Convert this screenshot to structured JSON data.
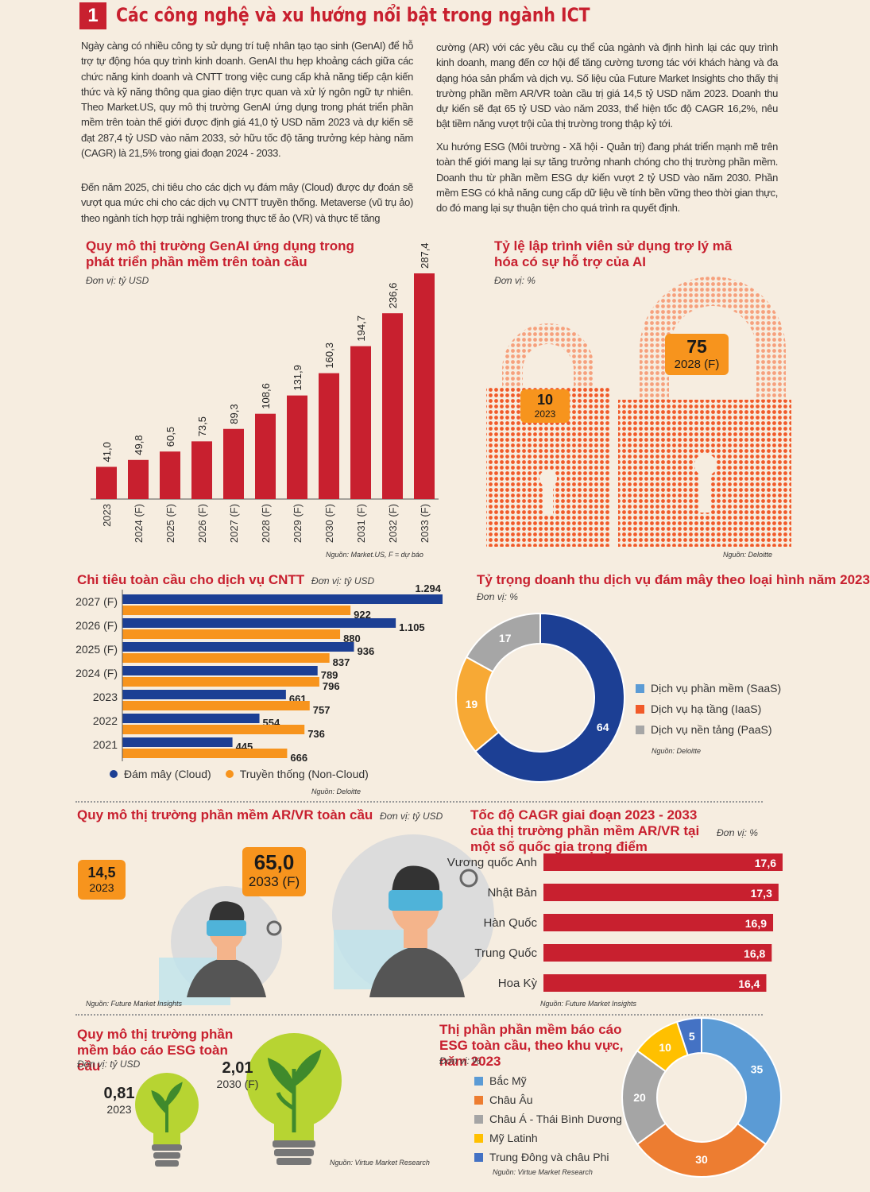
{
  "header": {
    "number": "1",
    "title": "Các công nghệ và xu hướng nổi bật trong ngành ICT"
  },
  "intro": {
    "left_p1": "Ngày càng có nhiều công ty sử dụng trí tuệ nhân tạo tạo sinh (GenAI) để hỗ trợ tự động hóa quy trình kinh doanh. GenAI thu hẹp khoảng cách giữa các chức năng kinh doanh và CNTT trong việc cung cấp khả năng tiếp cận kiến thức và kỹ năng thông qua giao diện trực quan và xử lý ngôn ngữ tự nhiên. Theo Market.US, quy mô thị trường GenAI ứng dụng trong phát triển phần mềm trên toàn thế giới được định giá 41,0 tỷ USD năm 2023 và dự kiến sẽ đạt 287,4 tỷ USD vào năm 2033, sở hữu tốc độ tăng trưởng kép hàng năm (CAGR) là 21,5% trong giai đoạn 2024 - 2033.",
    "left_p2": "Đến năm 2025, chi tiêu cho các dịch vụ đám mây (Cloud) được dự đoán sẽ vượt qua mức chi cho các dịch vụ CNTT truyền thống.  Metaverse (vũ trụ ảo) theo ngành tích hợp trải nghiệm trong thực tế ảo (VR) và thực tế tăng",
    "right_p1": "cường (AR) với các yêu cầu cụ thể của ngành và định hình lại các quy trình kinh doanh, mang đến cơ hội để tăng cường tương tác với khách hàng và đa dạng hóa sản phẩm và dịch vụ. Số liệu của Future Market Insights cho thấy thị trường phần mềm AR/VR toàn cầu trị giá 14,5 tỷ USD năm 2023. Doanh thu dự kiến sẽ đạt 65 tỷ USD vào năm 2033, thể hiện tốc độ CAGR 16,2%, nêu bật tiềm năng vượt trội của thị trường trong thập kỷ tới.",
    "right_p2": "Xu hướng ESG (Môi trường - Xã hội - Quản trị)  đang phát triển mạnh mẽ trên toàn thế giới mang lại sự tăng trưởng nhanh chóng cho thị trường phần mềm. Doanh thu từ phần mềm ESG dự kiến vượt 2 tỷ USD vào năm 2030. Phần mềm ESG có khả năng cung cấp dữ liệu về tính bền vững theo thời gian thực, do đó mang lại sự thuận tiện cho quá trình ra quyết định."
  },
  "colors": {
    "red": "#c8202f",
    "orange": "#f7941d",
    "navy": "#1c3f94",
    "grey": "#a6a6a6",
    "lightblue": "#5b9bd5",
    "lockorange": "#f15a29"
  },
  "chart_data": [
    {
      "id": "genai",
      "type": "bar",
      "title": "Quy mô thị trường GenAI ứng dụng trong phát triển phần mềm trên toàn cầu",
      "unit": "Đơn vị: tỷ USD",
      "source": "Nguồn: Market.US, F = dự báo",
      "categories": [
        "2023",
        "2024 (F)",
        "2025 (F)",
        "2026 (F)",
        "2027 (F)",
        "2028 (F)",
        "2029 (F)",
        "2030 (F)",
        "2031 (F)",
        "2032 (F)",
        "2033 (F)"
      ],
      "values": [
        41.0,
        49.8,
        60.5,
        73.5,
        89.3,
        108.6,
        131.9,
        160.3,
        194.7,
        236.6,
        287.4
      ],
      "labels": [
        "41,0",
        "49,8",
        "60,5",
        "73,5",
        "89,3",
        "108,6",
        "131,9",
        "160,3",
        "194,7",
        "236,6",
        "287,4"
      ],
      "color": "#c8202f"
    },
    {
      "id": "coding-assistant",
      "type": "bar",
      "title": "Tỷ lệ lập trình viên sử dụng trợ lý mã hóa có sự hỗ trợ của AI",
      "unit": "Đơn vị: %",
      "source": "Nguồn: Deloitte",
      "items": [
        {
          "value": 10,
          "label": "10",
          "year": "2023"
        },
        {
          "value": 75,
          "label": "75",
          "year": "2028 (F)"
        }
      ]
    },
    {
      "id": "it-spend",
      "type": "bar",
      "title": "Chi tiêu toàn cầu cho dịch vụ CNTT",
      "unit": "Đơn vị: tỷ USD",
      "source": "Nguồn: Deloitte",
      "categories": [
        "2027 (F)",
        "2026 (F)",
        "2025 (F)",
        "2024 (F)",
        "2023",
        "2022",
        "2021"
      ],
      "series": [
        {
          "name": "Đám mây (Cloud)",
          "values": [
            1294,
            1105,
            936,
            789,
            661,
            554,
            445
          ],
          "labels": [
            "1.294",
            "1.105",
            "936",
            "789",
            "661",
            "554",
            "445"
          ],
          "color": "#1c3f94"
        },
        {
          "name": "Truyền thống (Non-Cloud)",
          "values": [
            922,
            880,
            837,
            796,
            757,
            736,
            666
          ],
          "labels": [
            "922",
            "880",
            "837",
            "796",
            "757",
            "736",
            "666"
          ],
          "color": "#f7941d"
        }
      ]
    },
    {
      "id": "cloud-share",
      "type": "pie",
      "title": "Tỷ trọng doanh thu dịch vụ đám mây theo loại hình năm 2023",
      "unit": "Đơn vị: %",
      "source": "Nguồn: Deloitte",
      "slices": [
        {
          "name": "Dịch vụ phần mềm (SaaS)",
          "value": 64,
          "color": "#1c3f94",
          "legend_color": "#5b9bd5"
        },
        {
          "name": "Dịch vụ hạ tầng (IaaS)",
          "value": 19,
          "color": "#f7a935",
          "legend_color": "#f15a29"
        },
        {
          "name": "Dịch vụ nền tảng (PaaS)",
          "value": 17,
          "color": "#a6a6a6",
          "legend_color": "#a6a6a6"
        }
      ]
    },
    {
      "id": "arvr",
      "type": "bar",
      "title": "Quy mô thị trường phần mềm AR/VR toàn cầu",
      "unit": "Đơn vị: tỷ USD",
      "source": "Nguồn: Future Market Insights",
      "items": [
        {
          "value": 14.5,
          "label": "14,5",
          "year": "2023"
        },
        {
          "value": 65.0,
          "label": "65,0",
          "year": "2033 (F)"
        }
      ]
    },
    {
      "id": "cagr",
      "type": "bar",
      "title": "Tốc độ CAGR giai đoạn 2023 - 2033 của thị trường phần mềm AR/VR tại một số quốc gia trọng điểm",
      "unit": "Đơn vị: %",
      "source": "Nguồn: Future Market Insights",
      "categories": [
        "Vương quốc Anh",
        "Nhật Bản",
        "Hàn Quốc",
        "Trung Quốc",
        "Hoa Kỳ"
      ],
      "values": [
        17.6,
        17.3,
        16.9,
        16.8,
        16.4
      ],
      "labels": [
        "17,6",
        "17,3",
        "16,9",
        "16,8",
        "16,4"
      ],
      "color": "#c8202f"
    },
    {
      "id": "esg",
      "type": "bar",
      "title": "Quy mô thị trường phần mềm báo cáo ESG toàn cầu",
      "unit": "Đơn vị: tỷ USD",
      "source": "Nguồn: Virtue Market Research",
      "items": [
        {
          "value": 0.81,
          "label": "0,81",
          "year": "2023"
        },
        {
          "value": 2.01,
          "label": "2,01",
          "year": "2030 (F)"
        }
      ]
    },
    {
      "id": "esg-share",
      "type": "pie",
      "title": "Thị phần phần mềm báo cáo ESG toàn cầu, theo khu vực, năm 2023",
      "unit": "Đơn vị: %",
      "source": "Nguồn: Virtue Market Research",
      "slices": [
        {
          "name": "Bắc Mỹ",
          "value": 35,
          "color": "#5b9bd5"
        },
        {
          "name": "Châu Âu",
          "value": 30,
          "color": "#ed7d31"
        },
        {
          "name": "Châu Á - Thái Bình Dương",
          "value": 20,
          "color": "#a5a5a5"
        },
        {
          "name": "Mỹ Latinh",
          "value": 10,
          "color": "#ffc000"
        },
        {
          "name": "Trung Đông và châu Phi",
          "value": 5,
          "color": "#4472c4"
        }
      ]
    }
  ]
}
